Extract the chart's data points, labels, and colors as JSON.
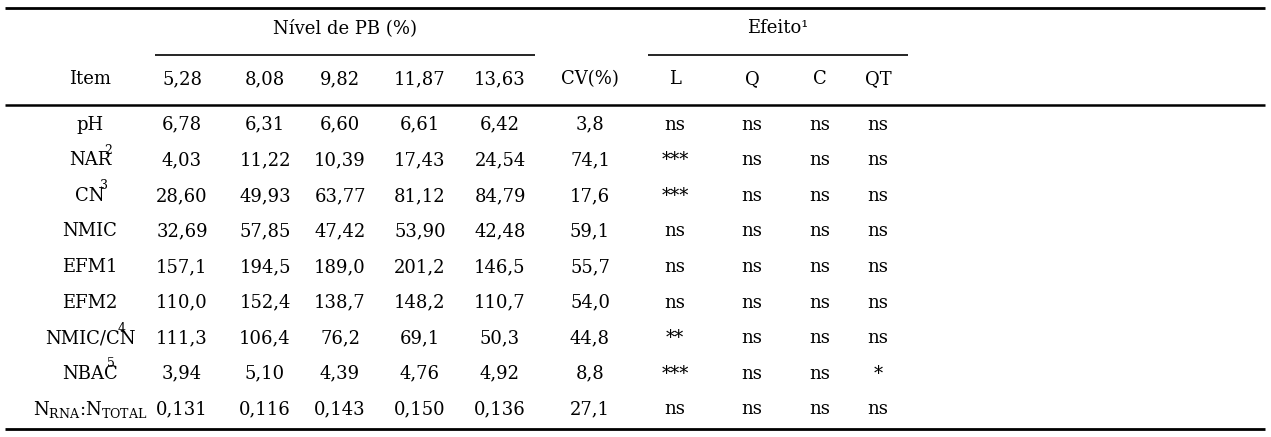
{
  "title_pb": "Nível de PB (%)",
  "title_efeito": "Efeito¹",
  "col_headers": [
    "Item",
    "5,28",
    "8,08",
    "9,82",
    "11,87",
    "13,63",
    "CV(%)",
    "L",
    "Q",
    "C",
    "QT"
  ],
  "rows": [
    {
      "item": "pH",
      "sup": "",
      "v1": "6,78",
      "v2": "6,31",
      "v3": "6,60",
      "v4": "6,61",
      "v5": "6,42",
      "cv": "3,8",
      "L": "ns",
      "Q": "ns",
      "C": "ns",
      "QT": "ns"
    },
    {
      "item": "NAR",
      "sup": "2",
      "v1": "4,03",
      "v2": "11,22",
      "v3": "10,39",
      "v4": "17,43",
      "v5": "24,54",
      "cv": "74,1",
      "L": "***",
      "Q": "ns",
      "C": "ns",
      "QT": "ns"
    },
    {
      "item": "CN",
      "sup": "3",
      "v1": "28,60",
      "v2": "49,93",
      "v3": "63,77",
      "v4": "81,12",
      "v5": "84,79",
      "cv": "17,6",
      "L": "***",
      "Q": "ns",
      "C": "ns",
      "QT": "ns"
    },
    {
      "item": "NMIC",
      "sup": "",
      "v1": "32,69",
      "v2": "57,85",
      "v3": "47,42",
      "v4": "53,90",
      "v5": "42,48",
      "cv": "59,1",
      "L": "ns",
      "Q": "ns",
      "C": "ns",
      "QT": "ns"
    },
    {
      "item": "EFM1",
      "sup": "",
      "v1": "157,1",
      "v2": "194,5",
      "v3": "189,0",
      "v4": "201,2",
      "v5": "146,5",
      "cv": "55,7",
      "L": "ns",
      "Q": "ns",
      "C": "ns",
      "QT": "ns"
    },
    {
      "item": "EFM2",
      "sup": "",
      "v1": "110,0",
      "v2": "152,4",
      "v3": "138,7",
      "v4": "148,2",
      "v5": "110,7",
      "cv": "54,0",
      "L": "ns",
      "Q": "ns",
      "C": "ns",
      "QT": "ns"
    },
    {
      "item": "NMIC/CN",
      "sup": "4",
      "v1": "111,3",
      "v2": "106,4",
      "v3": "76,2",
      "v4": "69,1",
      "v5": "50,3",
      "cv": "44,8",
      "L": "**",
      "Q": "ns",
      "C": "ns",
      "QT": "ns"
    },
    {
      "item": "NBAC",
      "sup": "5",
      "v1": "3,94",
      "v2": "5,10",
      "v3": "4,39",
      "v4": "4,76",
      "v5": "4,92",
      "cv": "8,8",
      "L": "***",
      "Q": "ns",
      "C": "ns",
      "QT": "*"
    },
    {
      "item": "NRNA_NTOTAL",
      "sup": "",
      "v1": "0,131",
      "v2": "0,116",
      "v3": "0,143",
      "v4": "0,150",
      "v5": "0,136",
      "cv": "27,1",
      "L": "ns",
      "Q": "ns",
      "C": "ns",
      "QT": "ns"
    }
  ],
  "bg_color": "#ffffff",
  "text_color": "#000000",
  "font_size": 13.0,
  "line_color": "#000000"
}
